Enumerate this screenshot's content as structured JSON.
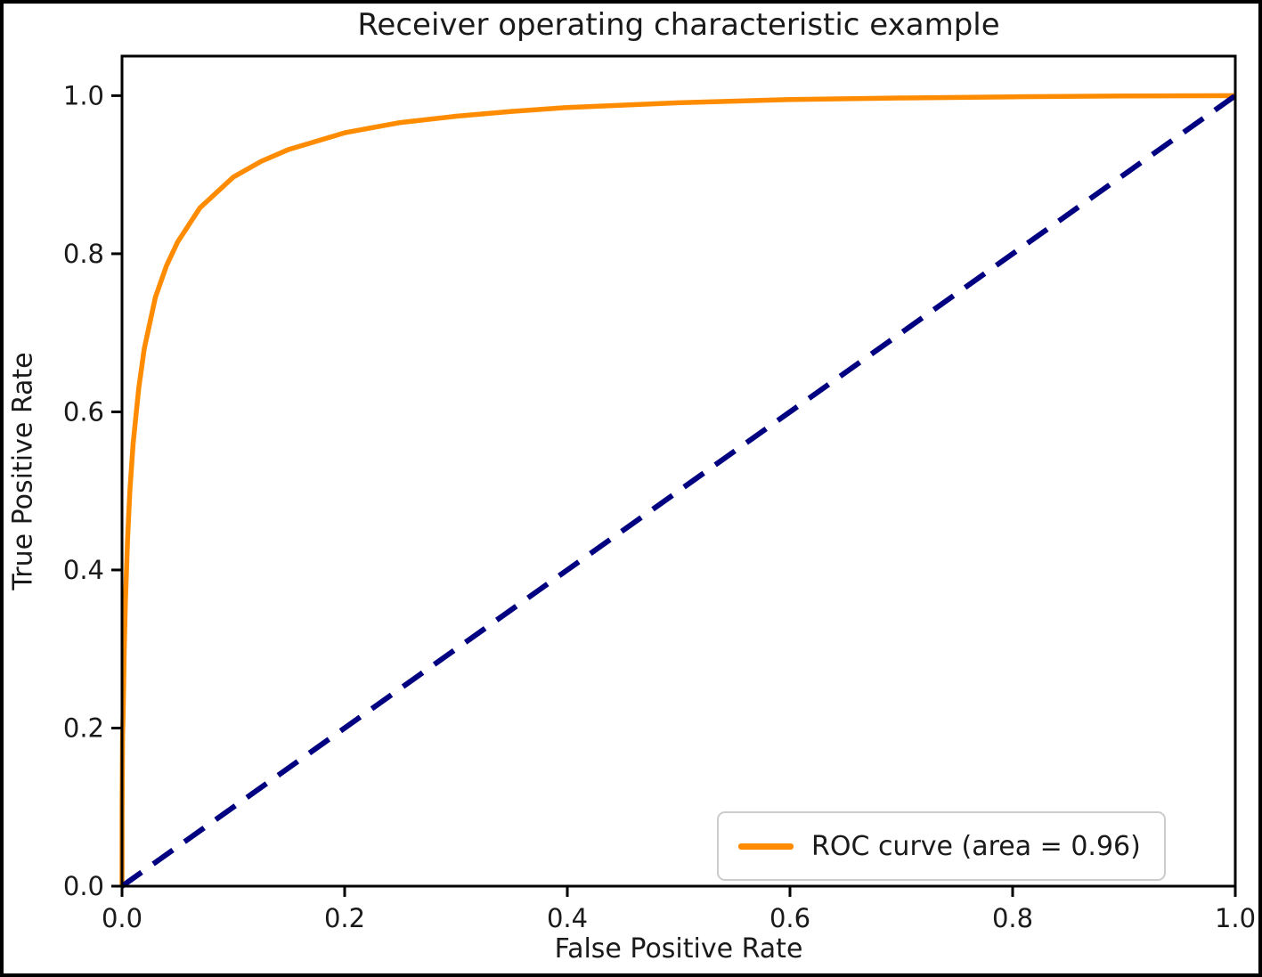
{
  "figure": {
    "kind": "matplotlib-roc-plot"
  },
  "colors": {
    "roc_curve": "#FF8C00",
    "chance_line": "#000080",
    "spine": "#000000",
    "text": "#1a1a1a",
    "legend_border": "#cccccc",
    "background": "#ffffff"
  },
  "legend": {
    "entries": [
      {
        "label": "ROC curve (area = 0.96)",
        "color": "#FF8C00"
      }
    ]
  },
  "chart_data": {
    "type": "line",
    "title": "Receiver operating characteristic example",
    "xlabel": "False Positive Rate",
    "ylabel": "True Positive Rate",
    "xlim": [
      0.0,
      1.0
    ],
    "ylim": [
      0.0,
      1.05
    ],
    "xticks": [
      "0.0",
      "0.2",
      "0.4",
      "0.6",
      "0.8",
      "1.0"
    ],
    "yticks": [
      "0.0",
      "0.2",
      "0.4",
      "0.6",
      "0.8",
      "1.0"
    ],
    "grid": false,
    "legend_position": "lower right",
    "auc": 0.96,
    "series": [
      {
        "name": "ROC curve (area = 0.96)",
        "color": "#FF8C00",
        "style": "solid",
        "width": 5.5,
        "points": [
          [
            0.0,
            0.0
          ],
          [
            0.0001,
            0.1
          ],
          [
            0.0003,
            0.15
          ],
          [
            0.0005,
            0.19
          ],
          [
            0.001,
            0.22
          ],
          [
            0.002,
            0.3
          ],
          [
            0.003,
            0.36
          ],
          [
            0.005,
            0.44
          ],
          [
            0.007,
            0.5
          ],
          [
            0.01,
            0.56
          ],
          [
            0.015,
            0.63
          ],
          [
            0.02,
            0.68
          ],
          [
            0.03,
            0.745
          ],
          [
            0.04,
            0.785
          ],
          [
            0.05,
            0.815
          ],
          [
            0.07,
            0.858
          ],
          [
            0.1,
            0.897
          ],
          [
            0.125,
            0.917
          ],
          [
            0.15,
            0.932
          ],
          [
            0.2,
            0.953
          ],
          [
            0.25,
            0.966
          ],
          [
            0.3,
            0.974
          ],
          [
            0.35,
            0.98
          ],
          [
            0.4,
            0.985
          ],
          [
            0.5,
            0.991
          ],
          [
            0.6,
            0.995
          ],
          [
            0.7,
            0.997
          ],
          [
            0.8,
            0.9985
          ],
          [
            0.9,
            0.9995
          ],
          [
            1.0,
            1.0
          ]
        ]
      },
      {
        "name": "chance-diagonal",
        "color": "#000080",
        "style": "dashed",
        "width": 6,
        "points": [
          [
            0.0,
            0.0
          ],
          [
            1.0,
            1.0
          ]
        ]
      }
    ]
  }
}
